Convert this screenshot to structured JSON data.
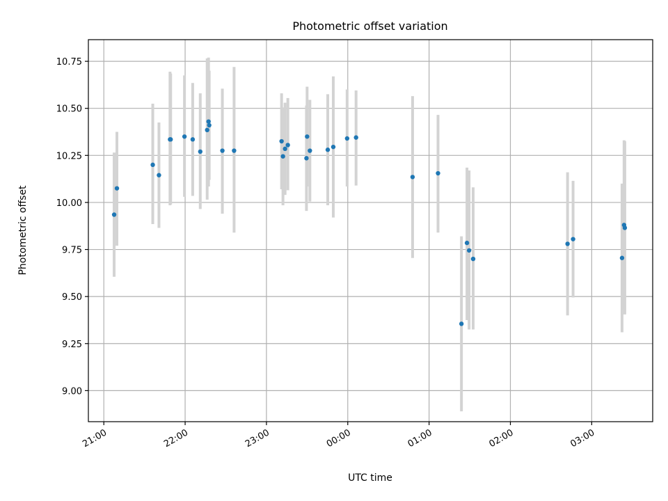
{
  "chart_data": {
    "type": "scatter",
    "title": "Photometric offset variation",
    "xlabel": "UTC time",
    "ylabel": "Photometric offset",
    "x_unit": "hours since 21:00 UTC",
    "xlim": [
      -0.19,
      6.75
    ],
    "ylim": [
      8.835,
      10.865
    ],
    "grid": true,
    "x_ticks": [
      {
        "value": 0,
        "label": "21:00"
      },
      {
        "value": 1,
        "label": "22:00"
      },
      {
        "value": 2,
        "label": "23:00"
      },
      {
        "value": 3,
        "label": "00:00"
      },
      {
        "value": 4,
        "label": "01:00"
      },
      {
        "value": 5,
        "label": "02:00"
      },
      {
        "value": 6,
        "label": "03:00"
      }
    ],
    "y_ticks": [
      {
        "value": 9.0,
        "label": "9.00"
      },
      {
        "value": 9.25,
        "label": "9.25"
      },
      {
        "value": 9.5,
        "label": "9.50"
      },
      {
        "value": 9.75,
        "label": "9.75"
      },
      {
        "value": 10.0,
        "label": "10.00"
      },
      {
        "value": 10.25,
        "label": "10.25"
      },
      {
        "value": 10.5,
        "label": "10.50"
      },
      {
        "value": 10.75,
        "label": "10.75"
      }
    ],
    "point_color": "#1f77b4",
    "errorbar_color": "#d3d3d3",
    "series": [
      {
        "name": "Photometric offset",
        "points": [
          {
            "x": 0.127,
            "y": 9.935,
            "low": 9.605,
            "high": 10.265
          },
          {
            "x": 0.161,
            "y": 10.075,
            "low": 9.77,
            "high": 10.375
          },
          {
            "x": 0.602,
            "y": 10.2,
            "low": 9.885,
            "high": 10.525
          },
          {
            "x": 0.678,
            "y": 10.145,
            "low": 9.865,
            "high": 10.425
          },
          {
            "x": 0.814,
            "y": 10.335,
            "low": 9.985,
            "high": 10.695
          },
          {
            "x": 0.822,
            "y": 10.335,
            "low": 9.99,
            "high": 10.685
          },
          {
            "x": 0.992,
            "y": 10.35,
            "low": 10.03,
            "high": 10.675
          },
          {
            "x": 1.093,
            "y": 10.335,
            "low": 10.035,
            "high": 10.635
          },
          {
            "x": 1.186,
            "y": 10.27,
            "low": 9.965,
            "high": 10.58
          },
          {
            "x": 1.271,
            "y": 10.385,
            "low": 10.015,
            "high": 10.765
          },
          {
            "x": 1.288,
            "y": 10.43,
            "low": 10.085,
            "high": 10.77
          },
          {
            "x": 1.296,
            "y": 10.41,
            "low": 10.12,
            "high": 10.7
          },
          {
            "x": 1.458,
            "y": 10.275,
            "low": 9.94,
            "high": 10.605
          },
          {
            "x": 1.602,
            "y": 10.275,
            "low": 9.84,
            "high": 10.72
          },
          {
            "x": 2.186,
            "y": 10.325,
            "low": 10.07,
            "high": 10.58
          },
          {
            "x": 2.203,
            "y": 10.245,
            "low": 9.985,
            "high": 10.505
          },
          {
            "x": 2.229,
            "y": 10.285,
            "low": 10.04,
            "high": 10.53
          },
          {
            "x": 2.263,
            "y": 10.305,
            "low": 10.065,
            "high": 10.555
          },
          {
            "x": 2.492,
            "y": 10.235,
            "low": 9.955,
            "high": 10.515
          },
          {
            "x": 2.5,
            "y": 10.35,
            "low": 10.085,
            "high": 10.615
          },
          {
            "x": 2.534,
            "y": 10.275,
            "low": 10.005,
            "high": 10.545
          },
          {
            "x": 2.754,
            "y": 10.28,
            "low": 9.985,
            "high": 10.575
          },
          {
            "x": 2.822,
            "y": 10.295,
            "low": 9.92,
            "high": 10.67
          },
          {
            "x": 2.992,
            "y": 10.34,
            "low": 10.085,
            "high": 10.6
          },
          {
            "x": 3.102,
            "y": 10.345,
            "low": 10.09,
            "high": 10.595
          },
          {
            "x": 3.797,
            "y": 10.135,
            "low": 9.705,
            "high": 10.565
          },
          {
            "x": 4.11,
            "y": 10.155,
            "low": 9.84,
            "high": 10.465
          },
          {
            "x": 4.398,
            "y": 9.355,
            "low": 8.89,
            "high": 9.82
          },
          {
            "x": 4.466,
            "y": 9.785,
            "low": 9.375,
            "high": 10.185
          },
          {
            "x": 4.492,
            "y": 9.745,
            "low": 9.325,
            "high": 10.17
          },
          {
            "x": 4.542,
            "y": 9.7,
            "low": 9.325,
            "high": 10.08
          },
          {
            "x": 5.703,
            "y": 9.78,
            "low": 9.4,
            "high": 10.16
          },
          {
            "x": 5.771,
            "y": 9.805,
            "low": 9.495,
            "high": 10.115
          },
          {
            "x": 6.373,
            "y": 9.705,
            "low": 9.31,
            "high": 10.1
          },
          {
            "x": 6.398,
            "y": 9.88,
            "low": 9.43,
            "high": 10.33
          },
          {
            "x": 6.407,
            "y": 9.865,
            "low": 9.405,
            "high": 10.325
          }
        ]
      }
    ]
  }
}
